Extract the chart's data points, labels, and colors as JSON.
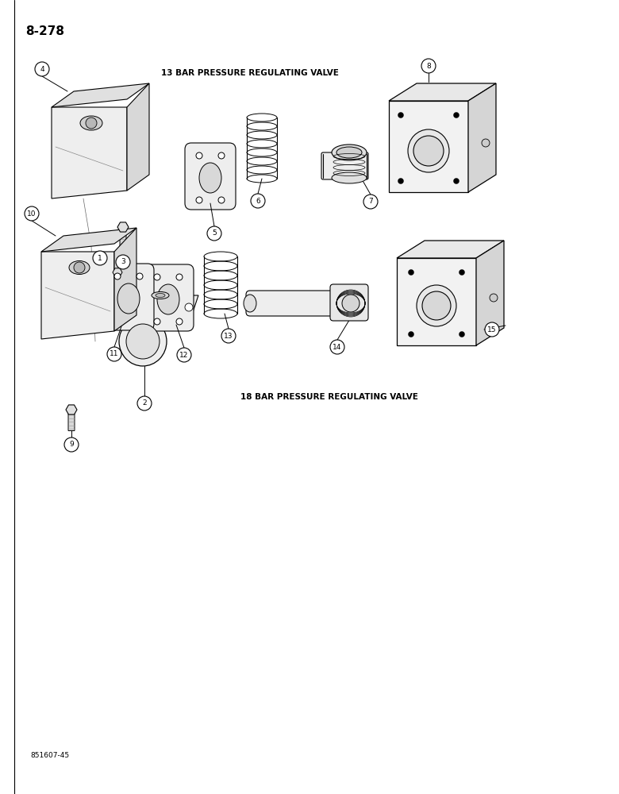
{
  "page_number": "8-278",
  "title_13bar": "13 BAR PRESSURE REGULATING VALVE",
  "title_18bar": "18 BAR PRESSURE REGULATING VALVE",
  "footer": "851607-45",
  "bg_color": "#ffffff",
  "lc": "#000000",
  "fc_light": "#f0f0f0",
  "fc_mid": "#e0e0e0",
  "fc_dark": "#c8c8c8",
  "fc_hole": "#d8d8d8",
  "lw_main": 0.9,
  "lw_thin": 0.5
}
